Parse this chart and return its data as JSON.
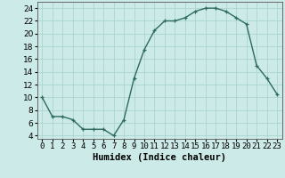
{
  "x": [
    0,
    1,
    2,
    3,
    4,
    5,
    6,
    7,
    8,
    9,
    10,
    11,
    12,
    13,
    14,
    15,
    16,
    17,
    18,
    19,
    20,
    21,
    22,
    23
  ],
  "y": [
    10,
    7,
    7,
    6.5,
    5,
    5,
    5,
    4,
    6.5,
    13,
    17.5,
    20.5,
    22,
    22,
    22.5,
    23.5,
    24,
    24,
    23.5,
    22.5,
    21.5,
    15,
    13,
    10.5
  ],
  "line_color": "#2d6b5e",
  "marker": "+",
  "bg_color": "#cceae7",
  "grid_color": "#aad4d0",
  "xlabel": "Humidex (Indice chaleur)",
  "xlim": [
    -0.5,
    23.5
  ],
  "ylim": [
    3.5,
    25
  ],
  "yticks": [
    4,
    6,
    8,
    10,
    12,
    14,
    16,
    18,
    20,
    22,
    24
  ],
  "xticks": [
    0,
    1,
    2,
    3,
    4,
    5,
    6,
    7,
    8,
    9,
    10,
    11,
    12,
    13,
    14,
    15,
    16,
    17,
    18,
    19,
    20,
    21,
    22,
    23
  ],
  "xtick_labels": [
    "0",
    "1",
    "2",
    "3",
    "4",
    "5",
    "6",
    "7",
    "8",
    "9",
    "10",
    "11",
    "12",
    "13",
    "14",
    "15",
    "16",
    "17",
    "18",
    "19",
    "20",
    "21",
    "22",
    "23"
  ],
  "linewidth": 1.0,
  "markersize": 3,
  "tick_fontsize": 6.5,
  "xlabel_fontsize": 7.5
}
